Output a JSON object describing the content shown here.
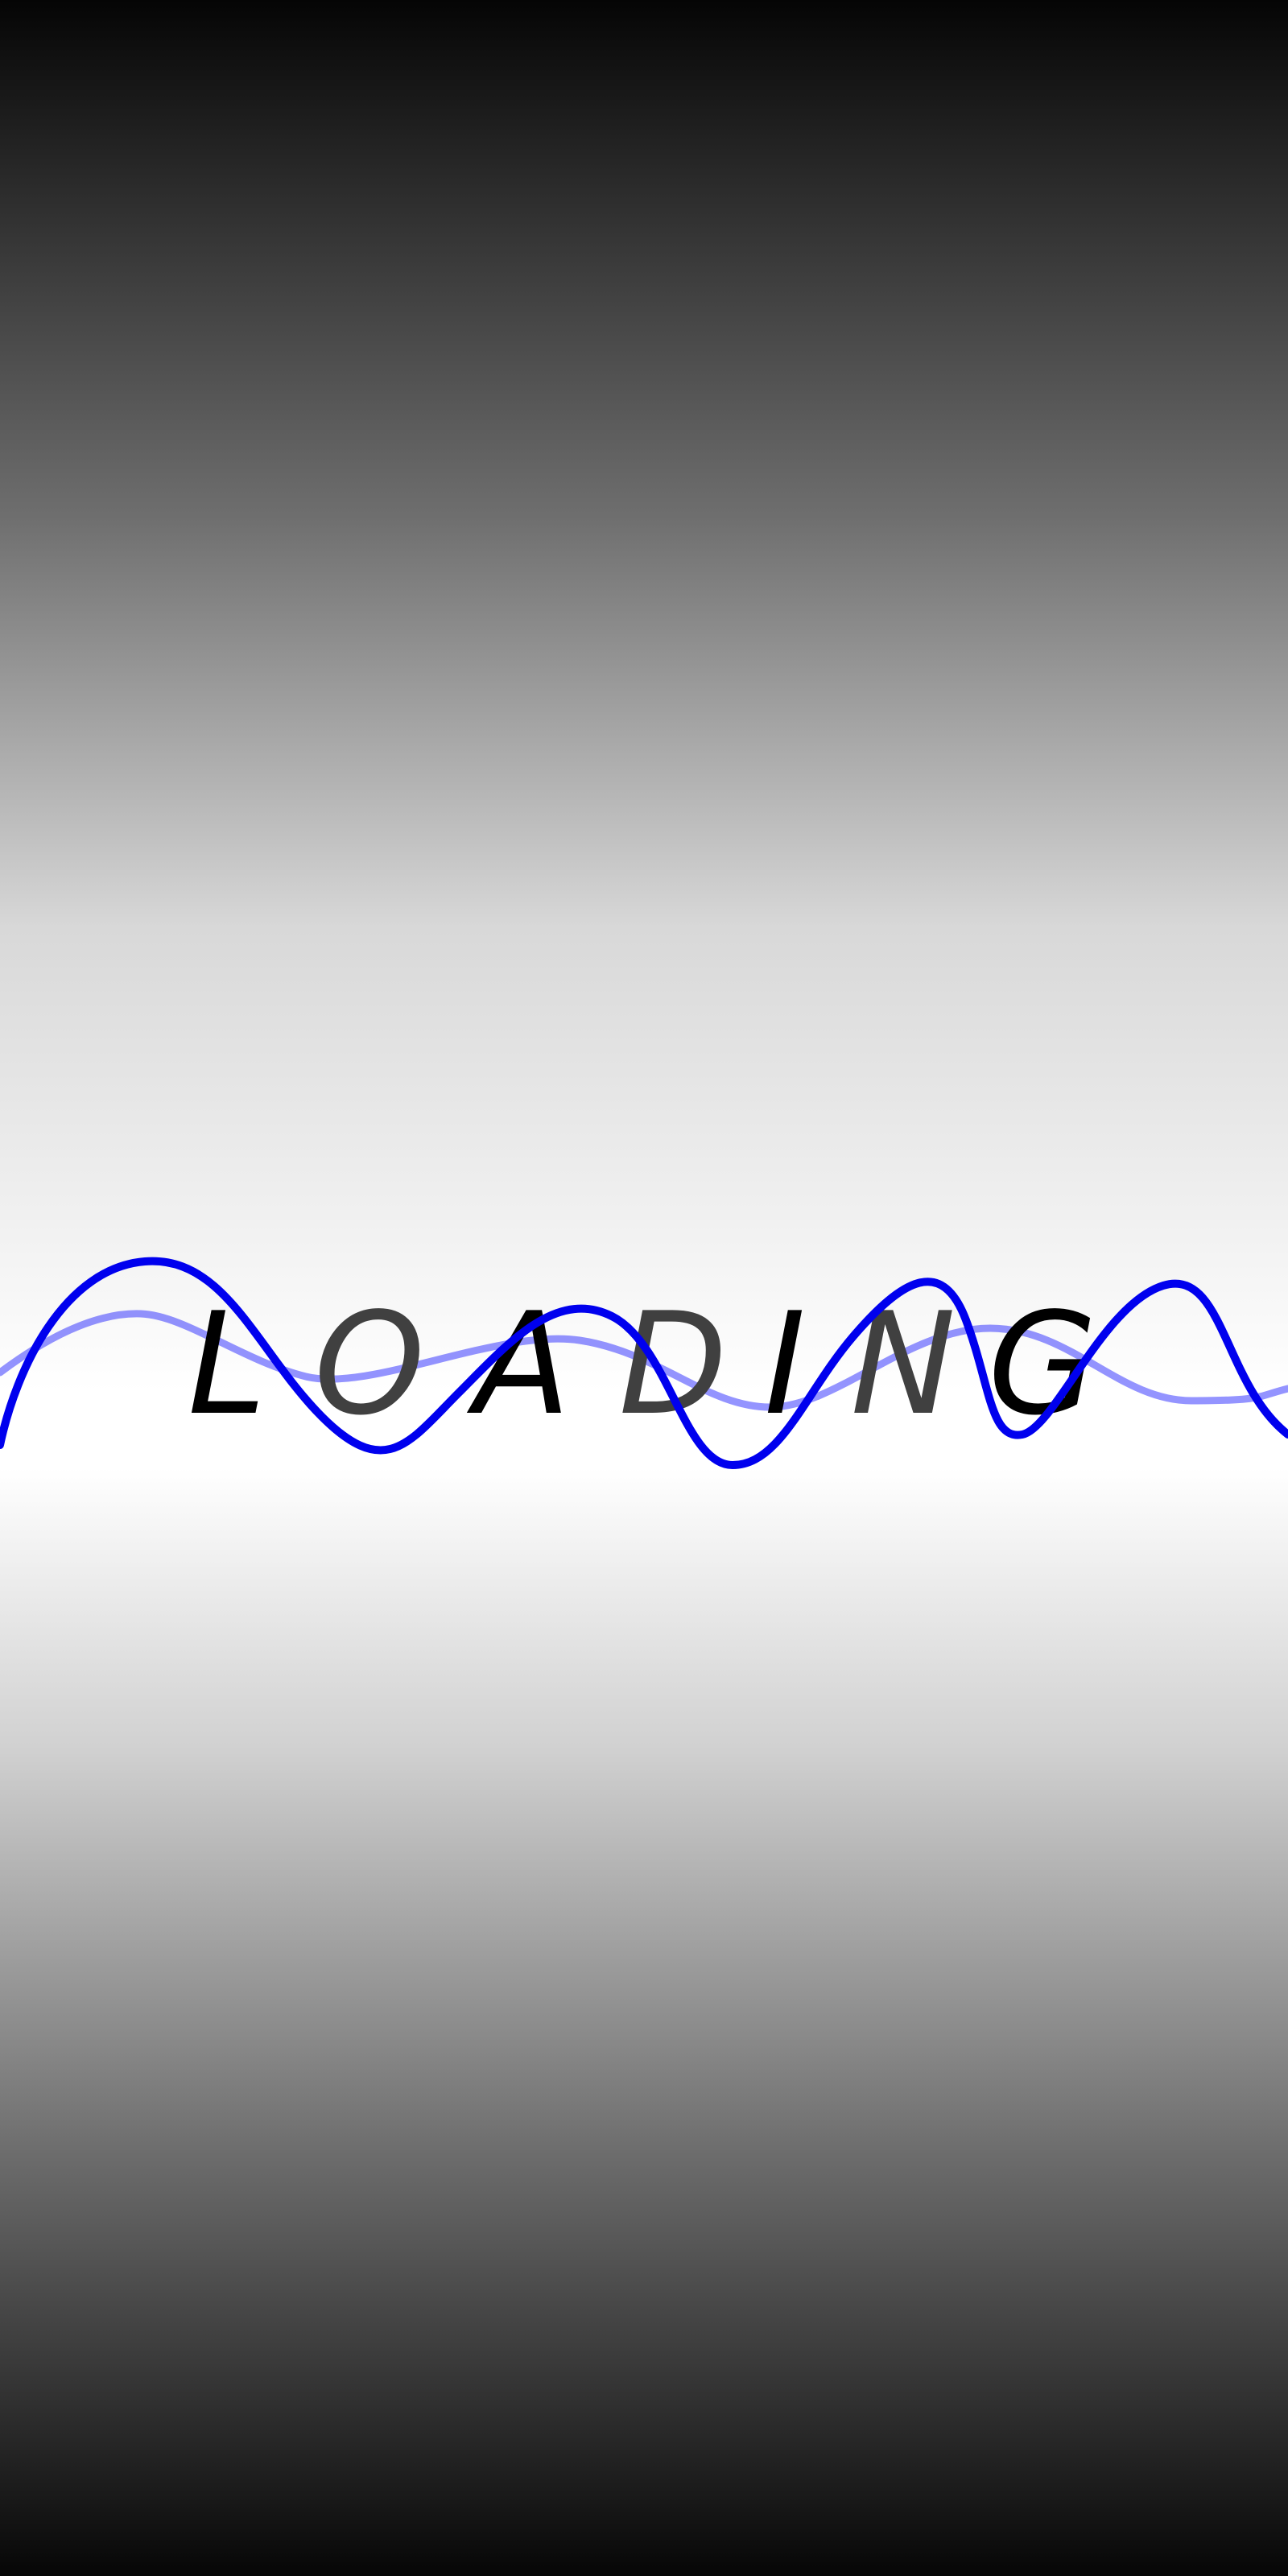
{
  "loading": {
    "letters": [
      "L",
      "O",
      "A",
      "D",
      "I",
      "N",
      "G"
    ]
  }
}
